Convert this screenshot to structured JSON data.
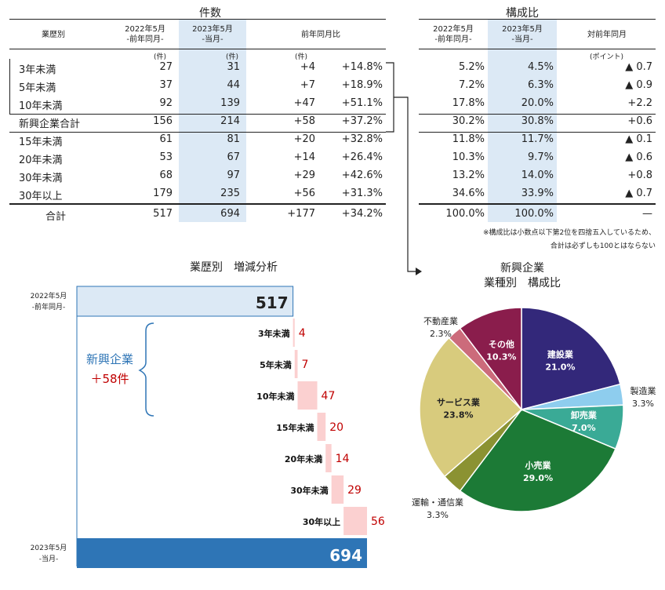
{
  "left_table": {
    "title": "件数",
    "headers": {
      "category": "業歴別",
      "prev_line1": "2022年5月",
      "prev_line2": "-前年同月-",
      "curr_line1": "2023年5月",
      "curr_line2": "-当月-",
      "yoy": "前年同月比"
    },
    "units": {
      "prev": "(件)",
      "curr": "(件)",
      "diff": "(件)"
    },
    "rows": [
      {
        "label": "3年未満",
        "prev": "27",
        "curr": "31",
        "diff": "+4",
        "pct": "+14.8%"
      },
      {
        "label": "5年未満",
        "prev": "37",
        "curr": "44",
        "diff": "+7",
        "pct": "+18.9%"
      },
      {
        "label": "10年未満",
        "prev": "92",
        "curr": "139",
        "diff": "+47",
        "pct": "+51.1%"
      },
      {
        "label": "新興企業合計",
        "prev": "156",
        "curr": "214",
        "diff": "+58",
        "pct": "+37.2%"
      },
      {
        "label": "15年未満",
        "prev": "61",
        "curr": "81",
        "diff": "+20",
        "pct": "+32.8%"
      },
      {
        "label": "20年未満",
        "prev": "53",
        "curr": "67",
        "diff": "+14",
        "pct": "+26.4%"
      },
      {
        "label": "30年未満",
        "prev": "68",
        "curr": "97",
        "diff": "+29",
        "pct": "+42.6%"
      },
      {
        "label": "30年以上",
        "prev": "179",
        "curr": "235",
        "diff": "+56",
        "pct": "+31.3%"
      }
    ],
    "total": {
      "label": "合計",
      "prev": "517",
      "curr": "694",
      "diff": "+177",
      "pct": "+34.2%"
    }
  },
  "right_table": {
    "title": "構成比",
    "headers": {
      "prev_line1": "2022年5月",
      "prev_line2": "-前年同月-",
      "curr_line1": "2023年5月",
      "curr_line2": "-当月-",
      "yoy": "対前年同月"
    },
    "unit": "(ポイント)",
    "rows": [
      {
        "prev": "5.2%",
        "curr": "4.5%",
        "yoy": "▲ 0.7"
      },
      {
        "prev": "7.2%",
        "curr": "6.3%",
        "yoy": "▲ 0.9"
      },
      {
        "prev": "17.8%",
        "curr": "20.0%",
        "yoy": "+2.2"
      },
      {
        "prev": "30.2%",
        "curr": "30.8%",
        "yoy": "+0.6"
      },
      {
        "prev": "11.8%",
        "curr": "11.7%",
        "yoy": "▲ 0.1"
      },
      {
        "prev": "10.3%",
        "curr": "9.7%",
        "yoy": "▲ 0.6"
      },
      {
        "prev": "13.2%",
        "curr": "14.0%",
        "yoy": "+0.8"
      },
      {
        "prev": "34.6%",
        "curr": "33.9%",
        "yoy": "▲ 0.7"
      }
    ],
    "total": {
      "prev": "100.0%",
      "curr": "100.0%",
      "yoy": "—"
    },
    "note_line1": "※構成比は小数点以下第2位を四捨五入しているため、",
    "note_line2": "合計は必ずしも100とはならない"
  },
  "chart_data": [
    {
      "type": "bar",
      "subtype": "waterfall",
      "title": "業歴別　増減分析",
      "start": {
        "label_line1": "2022年5月",
        "label_line2": "-前年同月-",
        "value": 517,
        "display": "517"
      },
      "end": {
        "label_line1": "2023年5月",
        "label_line2": "-当月-",
        "value": 694,
        "display": "694"
      },
      "categories": [
        "3年未満",
        "5年未満",
        "10年未満",
        "15年未満",
        "20年未満",
        "30年未満",
        "30年以上"
      ],
      "values": [
        4,
        7,
        47,
        20,
        14,
        29,
        56
      ],
      "annotation": {
        "label": "新興企業",
        "value": "＋58件"
      },
      "colors": {
        "start": "#dce9f5",
        "end": "#2e75b6",
        "step": "#fbd0d0",
        "step_text": "#c00000",
        "brace": "#2e75b6"
      }
    },
    {
      "type": "pie",
      "title_line1": "新興企業",
      "title_line2": "業種別　構成比",
      "slices": [
        {
          "label": "建設業",
          "value": 21.0,
          "display": "21.0%",
          "color": "#33287a",
          "label_inside": true
        },
        {
          "label": "製造業",
          "value": 3.3,
          "display": "3.3%",
          "color": "#8ecdee",
          "label_inside": false
        },
        {
          "label": "卸売業",
          "value": 7.0,
          "display": "7.0%",
          "color": "#3aaa96",
          "label_inside": true
        },
        {
          "label": "小売業",
          "value": 29.0,
          "display": "29.0%",
          "color": "#1c7a36",
          "label_inside": true
        },
        {
          "label": "運輸・通信業",
          "value": 3.3,
          "display": "3.3%",
          "color": "#8b9232",
          "label_inside": false
        },
        {
          "label": "サービス業",
          "value": 23.8,
          "display": "23.8%",
          "color": "#d8cb7d",
          "label_inside": true
        },
        {
          "label": "不動産業",
          "value": 2.3,
          "display": "2.3%",
          "color": "#cc6b7b",
          "label_inside": false
        },
        {
          "label": "その他",
          "value": 10.3,
          "display": "10.3%",
          "color": "#8a1d4c",
          "label_inside": true
        }
      ]
    }
  ]
}
